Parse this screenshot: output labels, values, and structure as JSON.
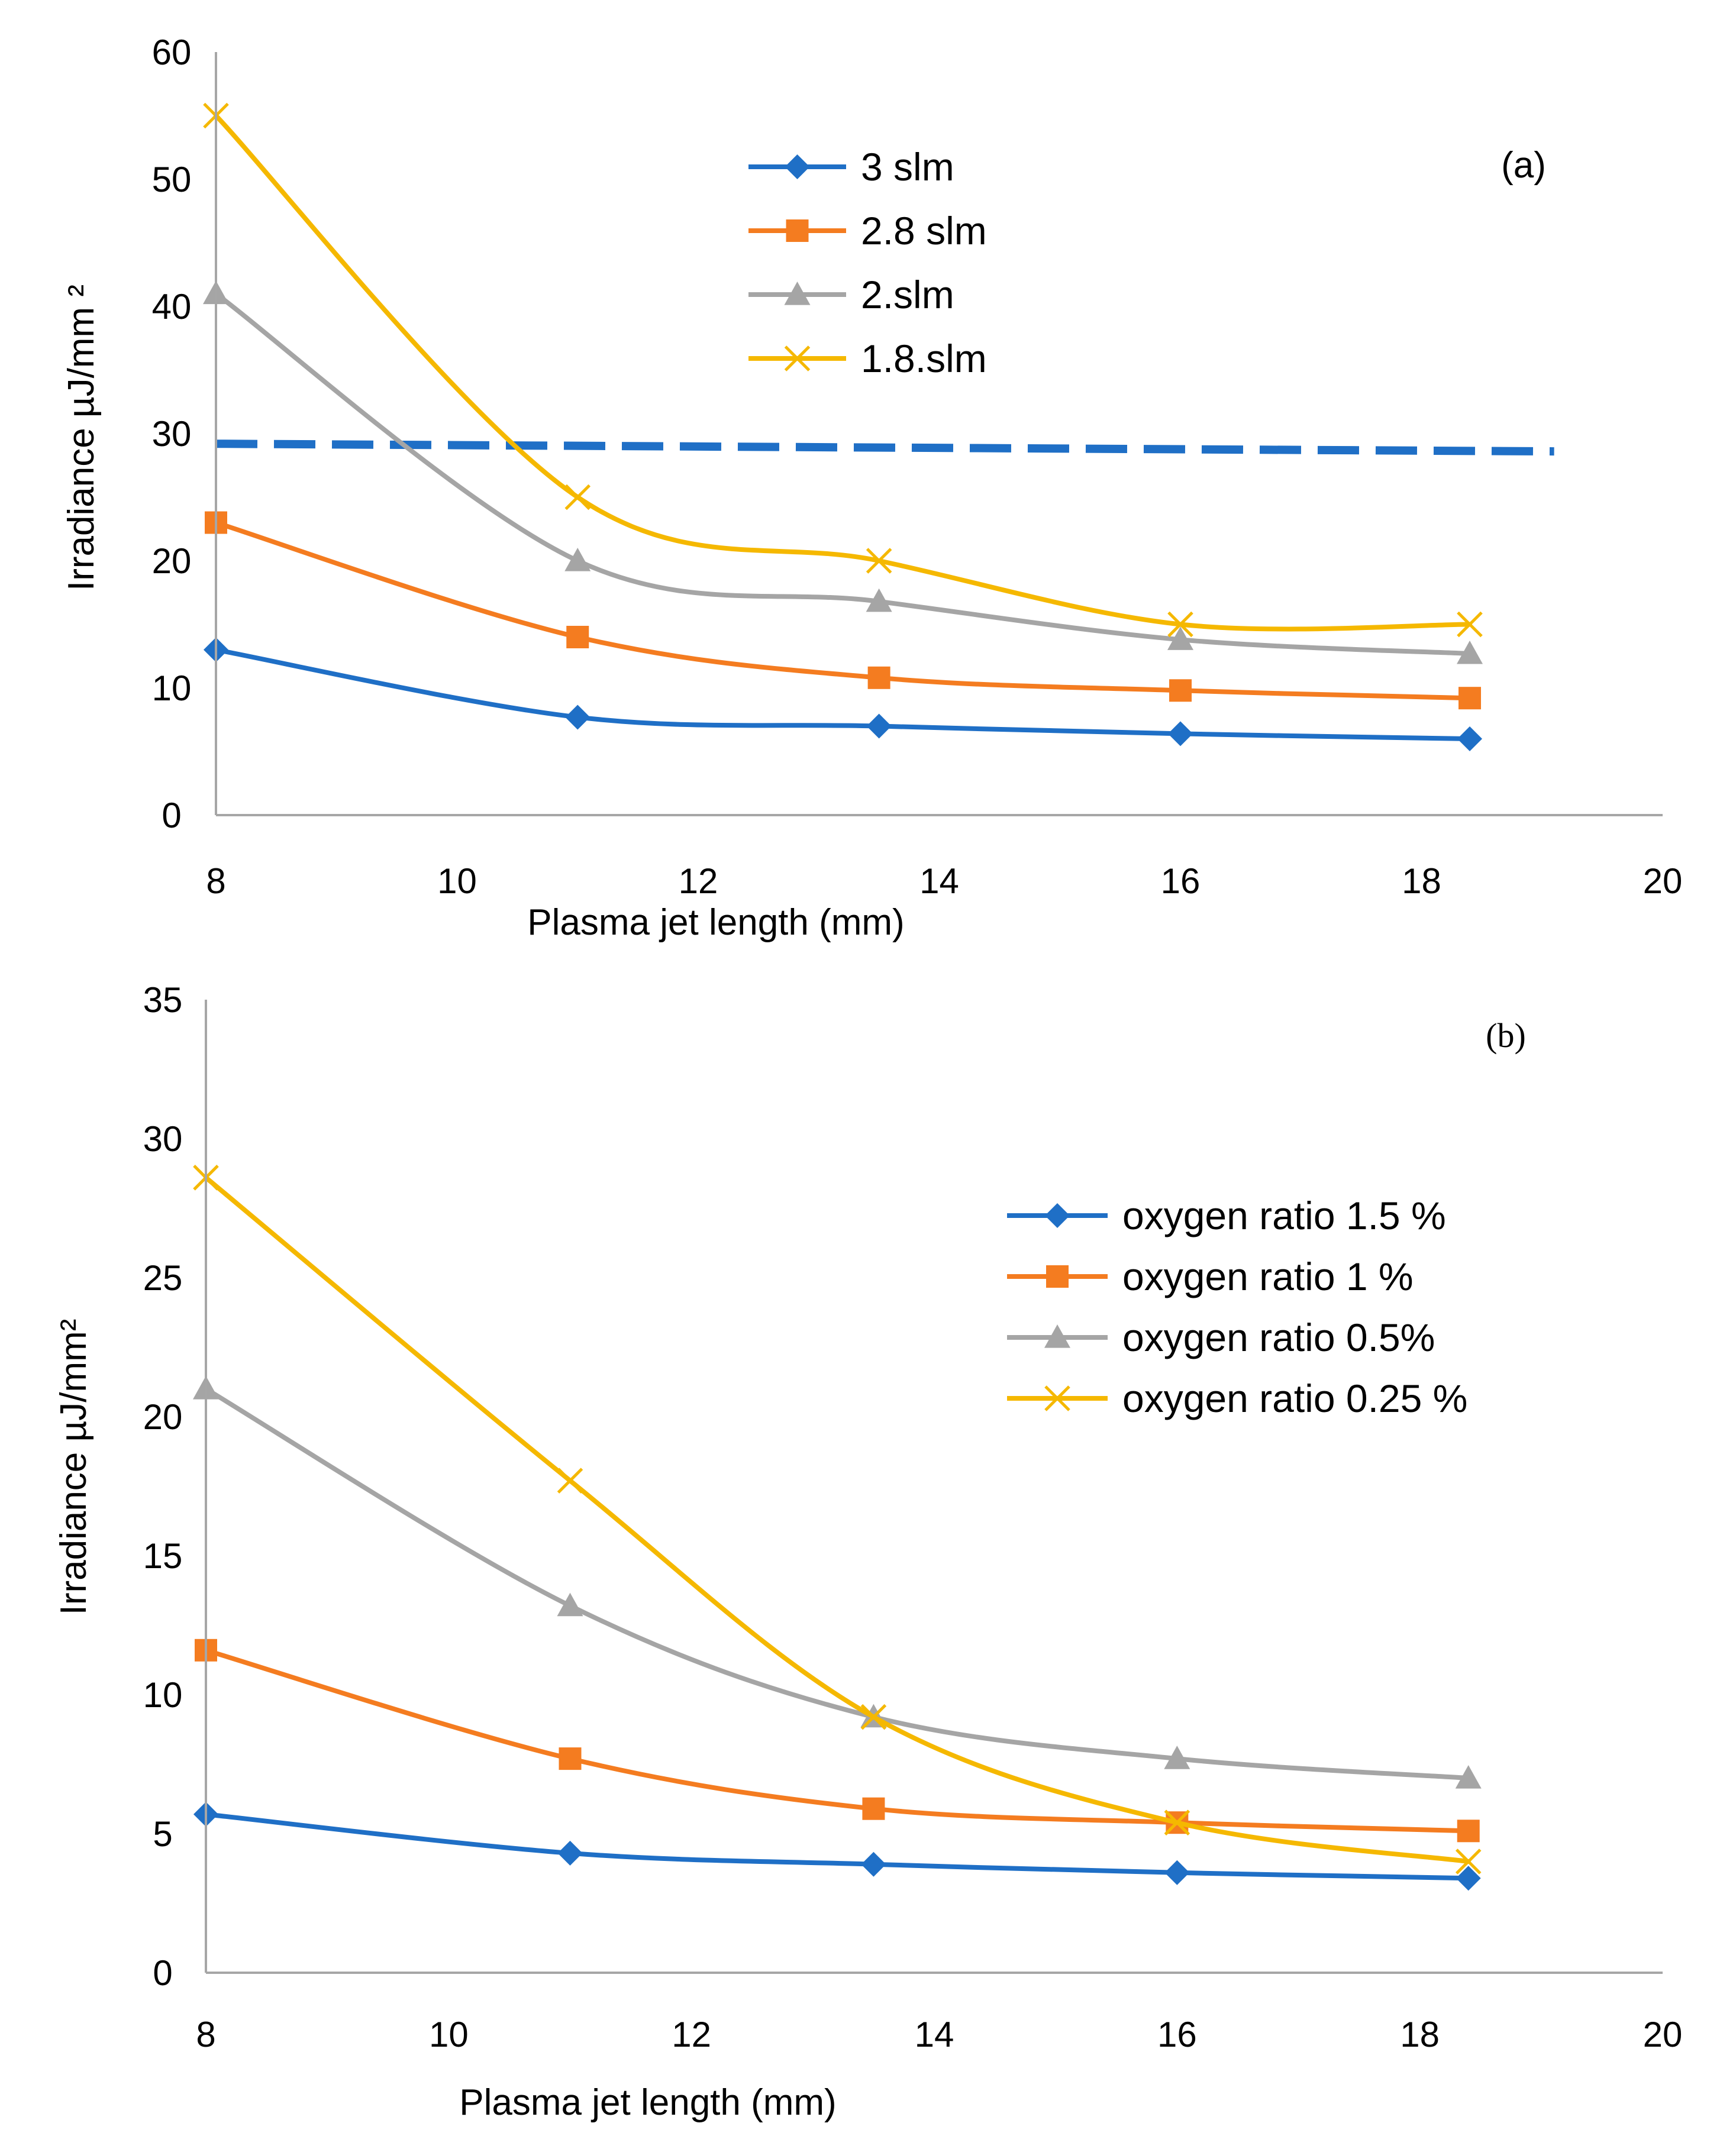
{
  "chart_data": [
    {
      "type": "line",
      "panel_label": "(a)",
      "xlabel": "Plasma jet length (mm)",
      "ylabel": "Irradiance µJ/mm ²",
      "xlim": [
        8,
        20
      ],
      "ylim": [
        0,
        60
      ],
      "xticks": [
        "8",
        "10",
        "12",
        "14",
        "16",
        "18",
        "20"
      ],
      "yticks": [
        "0",
        "10",
        "20",
        "30",
        "40",
        "50",
        "60"
      ],
      "x": [
        8,
        11,
        13.5,
        16,
        18.4
      ],
      "series": [
        {
          "name": "3 slm",
          "color": "#1f6fc6",
          "marker": "diamond",
          "values": [
            13,
            7.7,
            7,
            6.4,
            6
          ]
        },
        {
          "name": "2.8 slm",
          "color": "#f47c20",
          "marker": "square",
          "values": [
            23,
            14,
            10.8,
            9.8,
            9.2
          ]
        },
        {
          "name": "2.slm",
          "color": "#a5a5a5",
          "marker": "triangle",
          "values": [
            41,
            20,
            16.8,
            13.8,
            12.7
          ]
        },
        {
          "name": "1.8.slm",
          "color": "#f5b800",
          "marker": "x",
          "values": [
            55,
            25,
            20,
            15,
            15
          ]
        }
      ],
      "reference_line": {
        "color": "#1f6fc6",
        "x": [
          8,
          19.1
        ],
        "y": [
          29.2,
          28.6
        ]
      },
      "legend_position": "top-center"
    },
    {
      "type": "line",
      "panel_label": "(b)",
      "xlabel": "Plasma jet length (mm)",
      "ylabel": "Irradiance µJ/mm²",
      "xlim": [
        8,
        20
      ],
      "ylim": [
        0,
        35
      ],
      "xticks": [
        "8",
        "10",
        "12",
        "14",
        "16",
        "18",
        "20"
      ],
      "yticks": [
        "0",
        "5",
        "10",
        "15",
        "20",
        "25",
        "30",
        "35"
      ],
      "x": [
        8,
        11,
        13.5,
        16,
        18.4
      ],
      "series": [
        {
          "name": "oxygen ratio 1.5 %",
          "color": "#1f6fc6",
          "marker": "diamond",
          "values": [
            5.7,
            4.3,
            3.9,
            3.6,
            3.4
          ]
        },
        {
          "name": "oxygen ratio 1 %",
          "color": "#f47c20",
          "marker": "square",
          "values": [
            11.6,
            7.7,
            5.9,
            5.4,
            5.1
          ]
        },
        {
          "name": "oxygen ratio 0.5%",
          "color": "#a5a5a5",
          "marker": "triangle",
          "values": [
            21,
            13.2,
            9.2,
            7.7,
            7
          ]
        },
        {
          "name": "oxygen ratio 0.25 %",
          "color": "#f5b800",
          "marker": "x",
          "values": [
            28.6,
            17.7,
            9.2,
            5.4,
            4
          ]
        }
      ],
      "legend_position": "right"
    }
  ]
}
